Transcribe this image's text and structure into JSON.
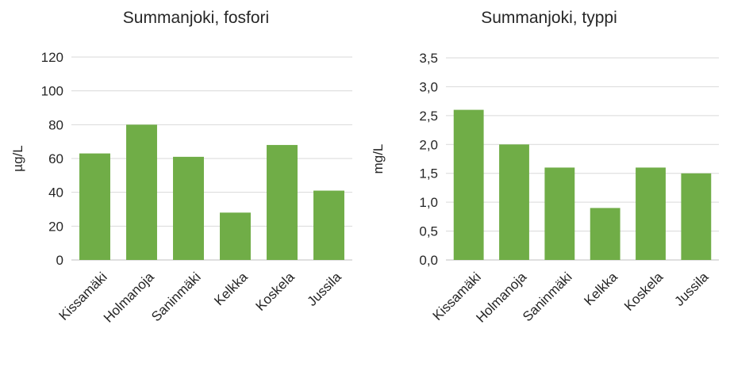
{
  "chart_data": [
    {
      "type": "bar",
      "title": "Summanjoki, fosfori",
      "xlabel": "",
      "ylabel": "µg/L",
      "categories": [
        "Kissamäki",
        "Holmanoja",
        "Saninmäki",
        "Kelkka",
        "Koskela",
        "Jussila"
      ],
      "values": [
        63,
        80,
        61,
        28,
        68,
        41
      ],
      "ylim": [
        0,
        120
      ],
      "yticks": [
        0,
        20,
        40,
        60,
        80,
        100,
        120
      ],
      "ytick_labels": [
        "0",
        "20",
        "40",
        "60",
        "80",
        "100",
        "120"
      ],
      "grid": true,
      "bar_color": "#70AD47"
    },
    {
      "type": "bar",
      "title": "Summanjoki, typpi",
      "xlabel": "",
      "ylabel": "mg/L",
      "categories": [
        "Kissamäki",
        "Holmanoja",
        "Saninmäki",
        "Kelkka",
        "Koskela",
        "Jussila"
      ],
      "values": [
        2.6,
        2.0,
        1.6,
        0.9,
        1.6,
        1.5
      ],
      "ylim": [
        0,
        3.5
      ],
      "yticks": [
        0,
        0.5,
        1.0,
        1.5,
        2.0,
        2.5,
        3.0,
        3.5
      ],
      "ytick_labels": [
        "0,0",
        "0,5",
        "1,0",
        "1,5",
        "2,0",
        "2,5",
        "3,0",
        "3,5"
      ],
      "grid": true,
      "bar_color": "#70AD47"
    }
  ]
}
